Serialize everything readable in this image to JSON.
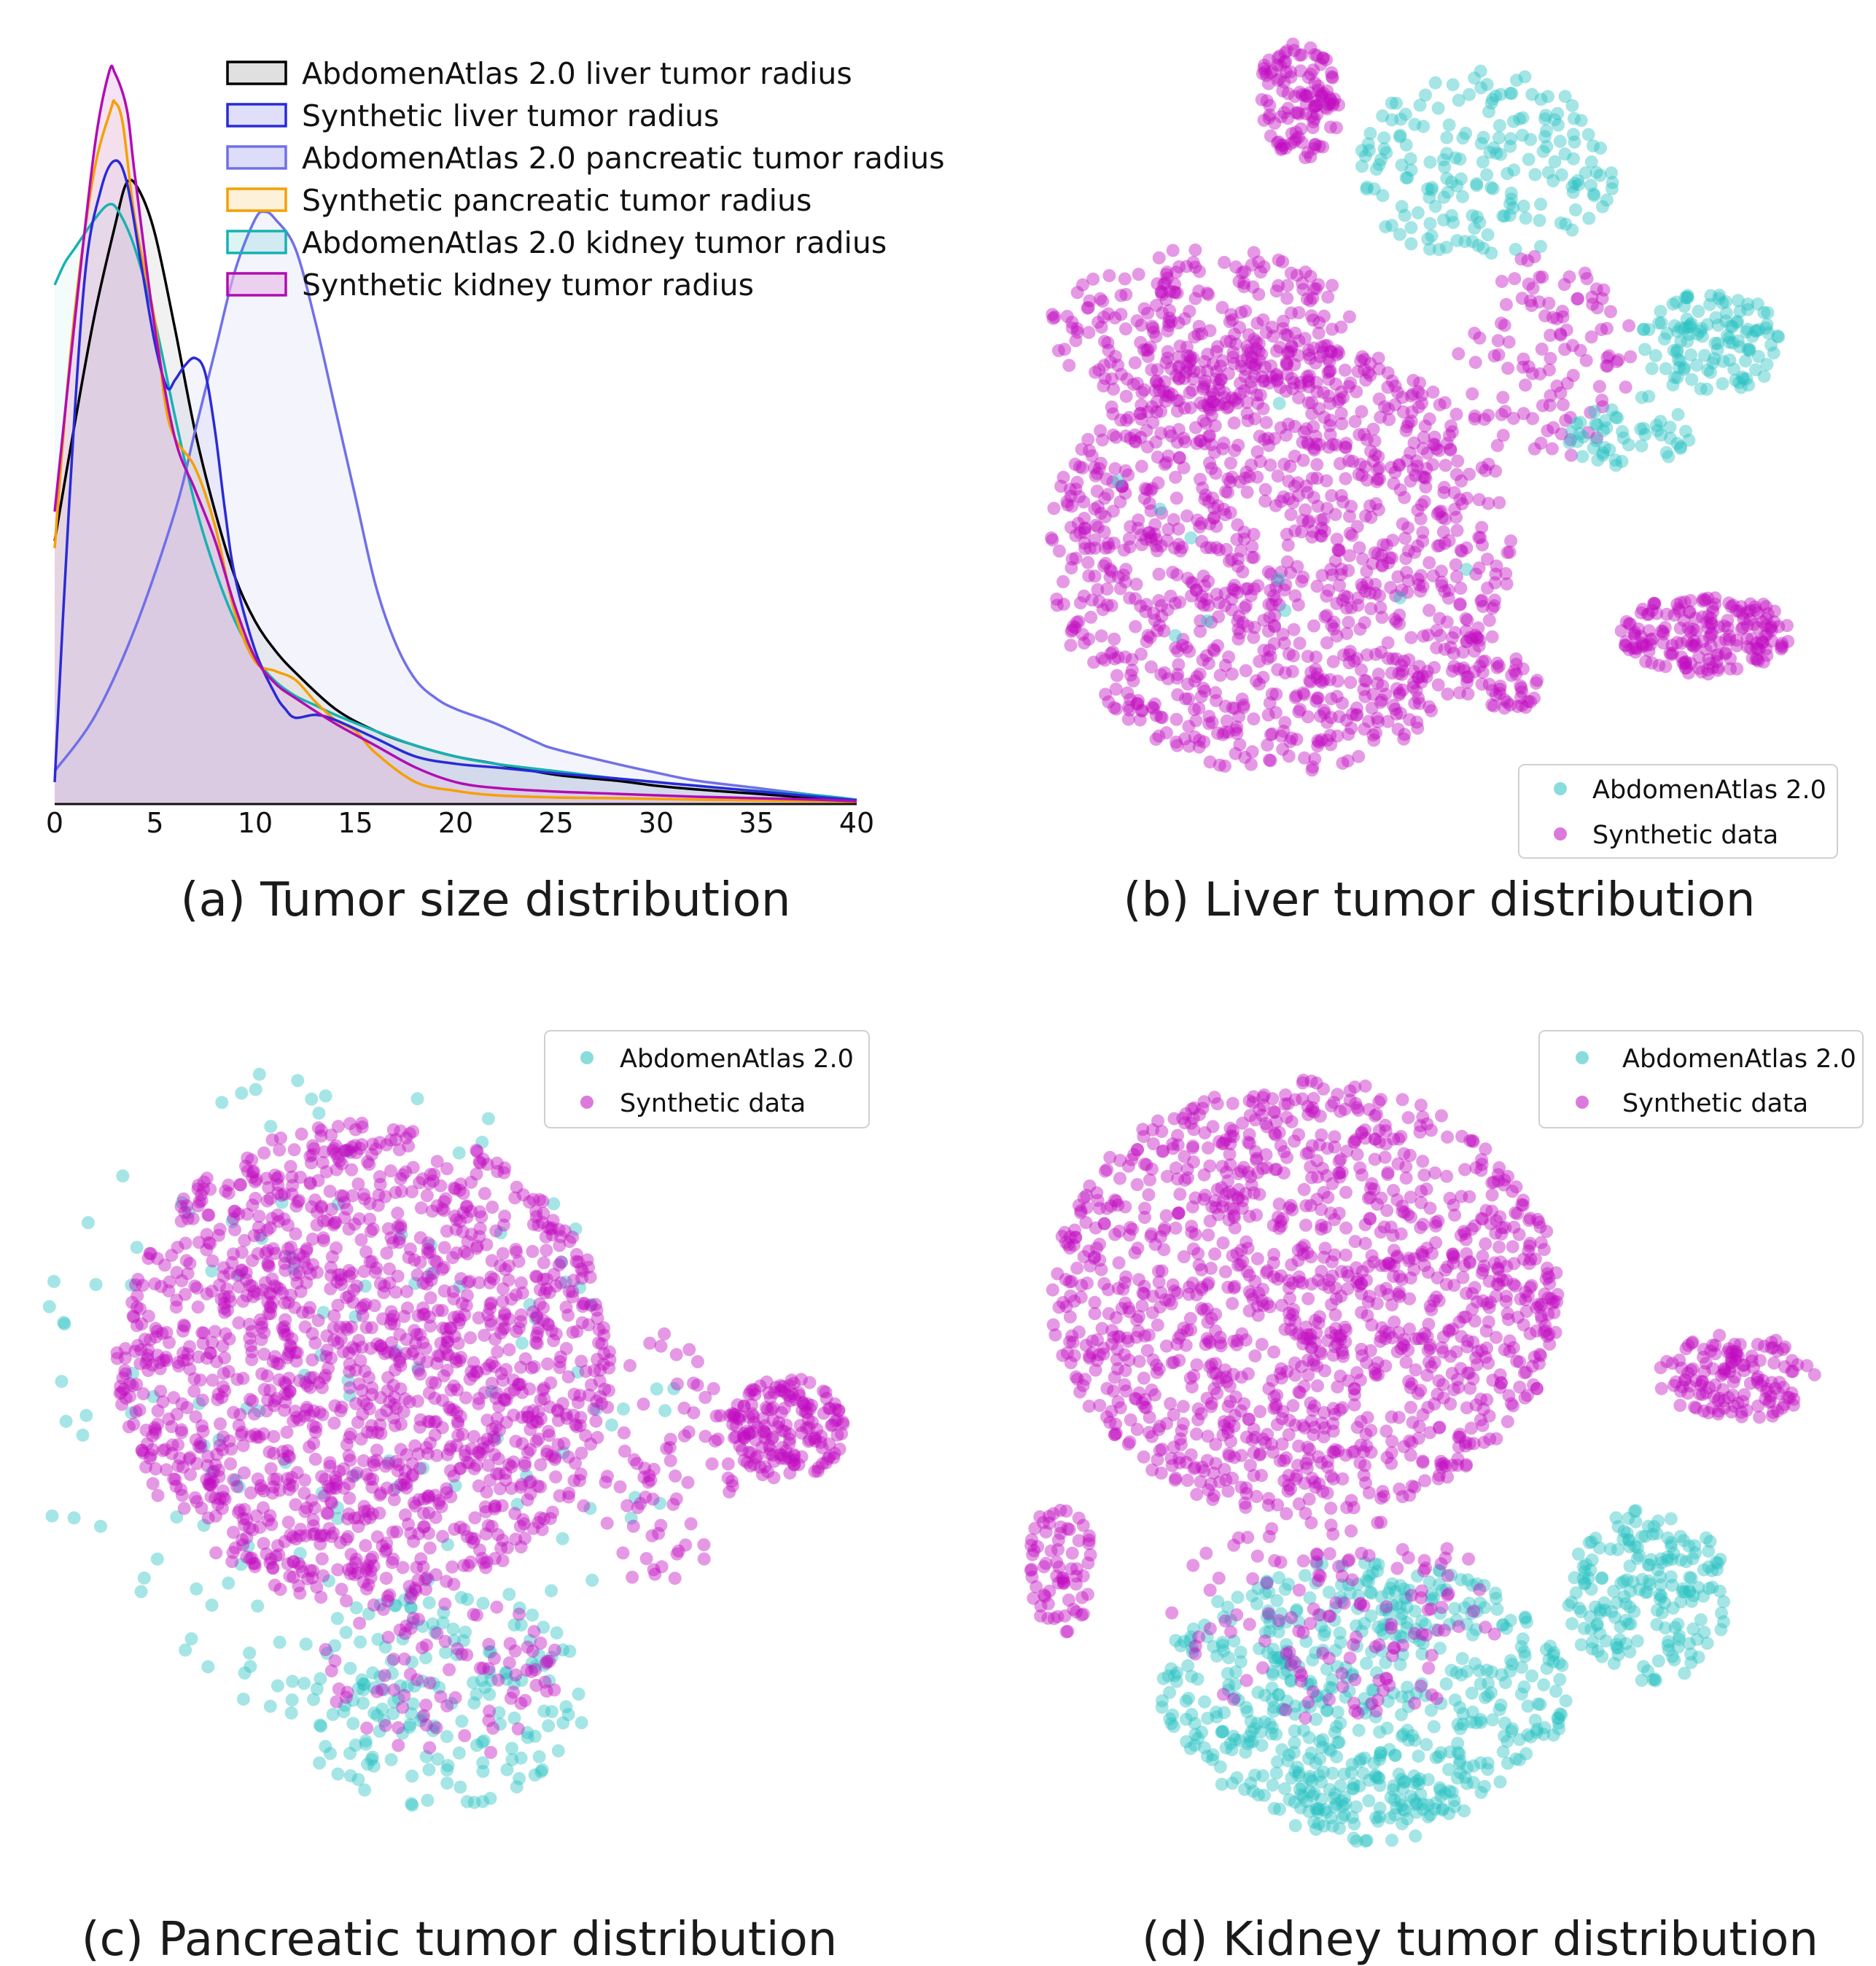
{
  "colors": {
    "liver_real": "#000000",
    "liver_syn": "#2a2ad6",
    "panc_real": "#7070e8",
    "panc_syn": "#f5a000",
    "kid_real": "#16b2b2",
    "kid_syn": "#b20cb2",
    "scatter_real": "#28c0c0",
    "scatter_syn": "#c00cc0"
  },
  "chart_data": [
    {
      "id": "a",
      "type": "area",
      "title": "(a) Tumor size distribution",
      "xlabel": "",
      "ylabel": "",
      "xlim": [
        0,
        40
      ],
      "ylim": [
        0,
        1.0
      ],
      "x_ticks": [
        "0",
        "5",
        "10",
        "15",
        "20",
        "25",
        "30",
        "35",
        "40"
      ],
      "grid": false,
      "legend_position": "top-right",
      "series": [
        {
          "name": "AbdomenAtlas 2.0 liver tumor radius",
          "color_key": "liver_real",
          "fill": "#cccccc",
          "fill_opacity": 0.28,
          "x": [
            0,
            1,
            2,
            3,
            3.6,
            4.2,
            5,
            6,
            7,
            8,
            9,
            10,
            11,
            12,
            14,
            16,
            18,
            20,
            22,
            25,
            28,
            30,
            32,
            34,
            36,
            38,
            40
          ],
          "y": [
            0.36,
            0.52,
            0.67,
            0.79,
            0.85,
            0.84,
            0.78,
            0.65,
            0.51,
            0.4,
            0.31,
            0.25,
            0.21,
            0.18,
            0.13,
            0.1,
            0.08,
            0.065,
            0.055,
            0.04,
            0.032,
            0.025,
            0.02,
            0.016,
            0.012,
            0.008,
            0.005
          ]
        },
        {
          "name": "Synthetic liver tumor radius",
          "color_key": "liver_syn",
          "fill": "#2a2ad6",
          "fill_opacity": 0.05,
          "x": [
            0,
            0.7,
            1.5,
            2.3,
            3.0,
            3.6,
            4.3,
            5.0,
            5.6,
            6.0,
            6.5,
            7.0,
            7.5,
            8.0,
            8.5,
            9.0,
            10,
            11,
            11.5,
            12,
            13,
            14,
            16,
            18,
            20,
            22,
            25,
            28,
            30,
            32,
            34,
            36,
            38,
            40
          ],
          "y": [
            0.03,
            0.4,
            0.72,
            0.84,
            0.88,
            0.85,
            0.74,
            0.63,
            0.57,
            0.58,
            0.6,
            0.61,
            0.59,
            0.51,
            0.4,
            0.31,
            0.21,
            0.15,
            0.13,
            0.118,
            0.122,
            0.115,
            0.09,
            0.065,
            0.055,
            0.05,
            0.042,
            0.035,
            0.03,
            0.025,
            0.02,
            0.015,
            0.01,
            0.005
          ]
        },
        {
          "name": "AbdomenAtlas 2.0 pancreatic tumor radius",
          "color_key": "panc_real",
          "fill": "#7070e8",
          "fill_opacity": 0.08,
          "x": [
            0,
            2,
            4,
            6,
            7,
            8,
            9,
            10,
            10.5,
            11,
            12,
            13,
            14,
            15,
            16,
            17,
            18,
            19,
            20,
            22,
            24,
            25,
            28,
            30,
            32,
            35,
            38,
            40
          ],
          "y": [
            0.045,
            0.12,
            0.24,
            0.4,
            0.51,
            0.62,
            0.73,
            0.8,
            0.81,
            0.8,
            0.76,
            0.66,
            0.54,
            0.42,
            0.3,
            0.22,
            0.17,
            0.145,
            0.13,
            0.11,
            0.085,
            0.075,
            0.055,
            0.043,
            0.032,
            0.022,
            0.012,
            0.006
          ]
        },
        {
          "name": "Synthetic pancreatic tumor radius",
          "color_key": "panc_syn",
          "fill": "#f5a000",
          "fill_opacity": 0.05,
          "x": [
            0,
            0.6,
            1.2,
            2.0,
            2.8,
            3.0,
            3.4,
            4.0,
            5.0,
            5.5,
            6.0,
            7.0,
            8.0,
            9.0,
            10,
            11,
            12,
            13,
            14,
            15,
            16,
            18,
            20,
            22,
            25,
            28,
            30,
            32,
            35,
            38,
            40
          ],
          "y": [
            0.35,
            0.56,
            0.72,
            0.87,
            0.95,
            0.96,
            0.93,
            0.8,
            0.66,
            0.55,
            0.5,
            0.46,
            0.38,
            0.26,
            0.195,
            0.182,
            0.17,
            0.14,
            0.115,
            0.1,
            0.07,
            0.03,
            0.018,
            0.012,
            0.009,
            0.008,
            0.007,
            0.006,
            0.005,
            0.004,
            0.003
          ]
        },
        {
          "name": "AbdomenAtlas 2.0 kidney tumor radius",
          "color_key": "kid_real",
          "fill": "#16b2b2",
          "fill_opacity": 0.05,
          "x": [
            0,
            0.5,
            1,
            2,
            2.7,
            3.2,
            4,
            5,
            6,
            7,
            8,
            9,
            10,
            11,
            12,
            13,
            14,
            16,
            18,
            20,
            22,
            25,
            28,
            30,
            32,
            35,
            38,
            40
          ],
          "y": [
            0.71,
            0.74,
            0.76,
            0.8,
            0.82,
            0.81,
            0.76,
            0.66,
            0.53,
            0.41,
            0.32,
            0.25,
            0.2,
            0.168,
            0.148,
            0.135,
            0.122,
            0.1,
            0.08,
            0.065,
            0.055,
            0.045,
            0.035,
            0.03,
            0.025,
            0.018,
            0.012,
            0.006
          ]
        },
        {
          "name": "Synthetic kidney tumor radius",
          "color_key": "kid_syn",
          "fill": "#e6b8e6",
          "fill_opacity": 0.4,
          "x": [
            0,
            1,
            2,
            2.7,
            3.0,
            3.6,
            4.0,
            5,
            6,
            7,
            8,
            9,
            10,
            11,
            12,
            14,
            16,
            18,
            20,
            22,
            25,
            28,
            30,
            32,
            35,
            38,
            40
          ],
          "y": [
            0.4,
            0.66,
            0.9,
            1.0,
            1.0,
            0.95,
            0.86,
            0.65,
            0.5,
            0.43,
            0.36,
            0.27,
            0.2,
            0.165,
            0.145,
            0.11,
            0.08,
            0.05,
            0.03,
            0.022,
            0.017,
            0.014,
            0.012,
            0.01,
            0.008,
            0.006,
            0.004
          ]
        }
      ]
    },
    {
      "id": "b",
      "type": "scatter",
      "title": "(b) Liver tumor distribution",
      "legend_position": "bottom-right",
      "series": [
        {
          "name": "AbdomenAtlas 2.0",
          "color_key": "scatter_real"
        },
        {
          "name": "Synthetic data",
          "color_key": "scatter_syn"
        }
      ]
    },
    {
      "id": "c",
      "type": "scatter",
      "title": "(c) Pancreatic tumor distribution",
      "legend_position": "top-right",
      "series": [
        {
          "name": "AbdomenAtlas 2.0",
          "color_key": "scatter_real"
        },
        {
          "name": "Synthetic data",
          "color_key": "scatter_syn"
        }
      ]
    },
    {
      "id": "d",
      "type": "scatter",
      "title": "(d) Kidney tumor distribution",
      "legend_position": "top-right",
      "series": [
        {
          "name": "AbdomenAtlas 2.0",
          "color_key": "scatter_real"
        },
        {
          "name": "Synthetic data",
          "color_key": "scatter_syn"
        }
      ]
    }
  ]
}
